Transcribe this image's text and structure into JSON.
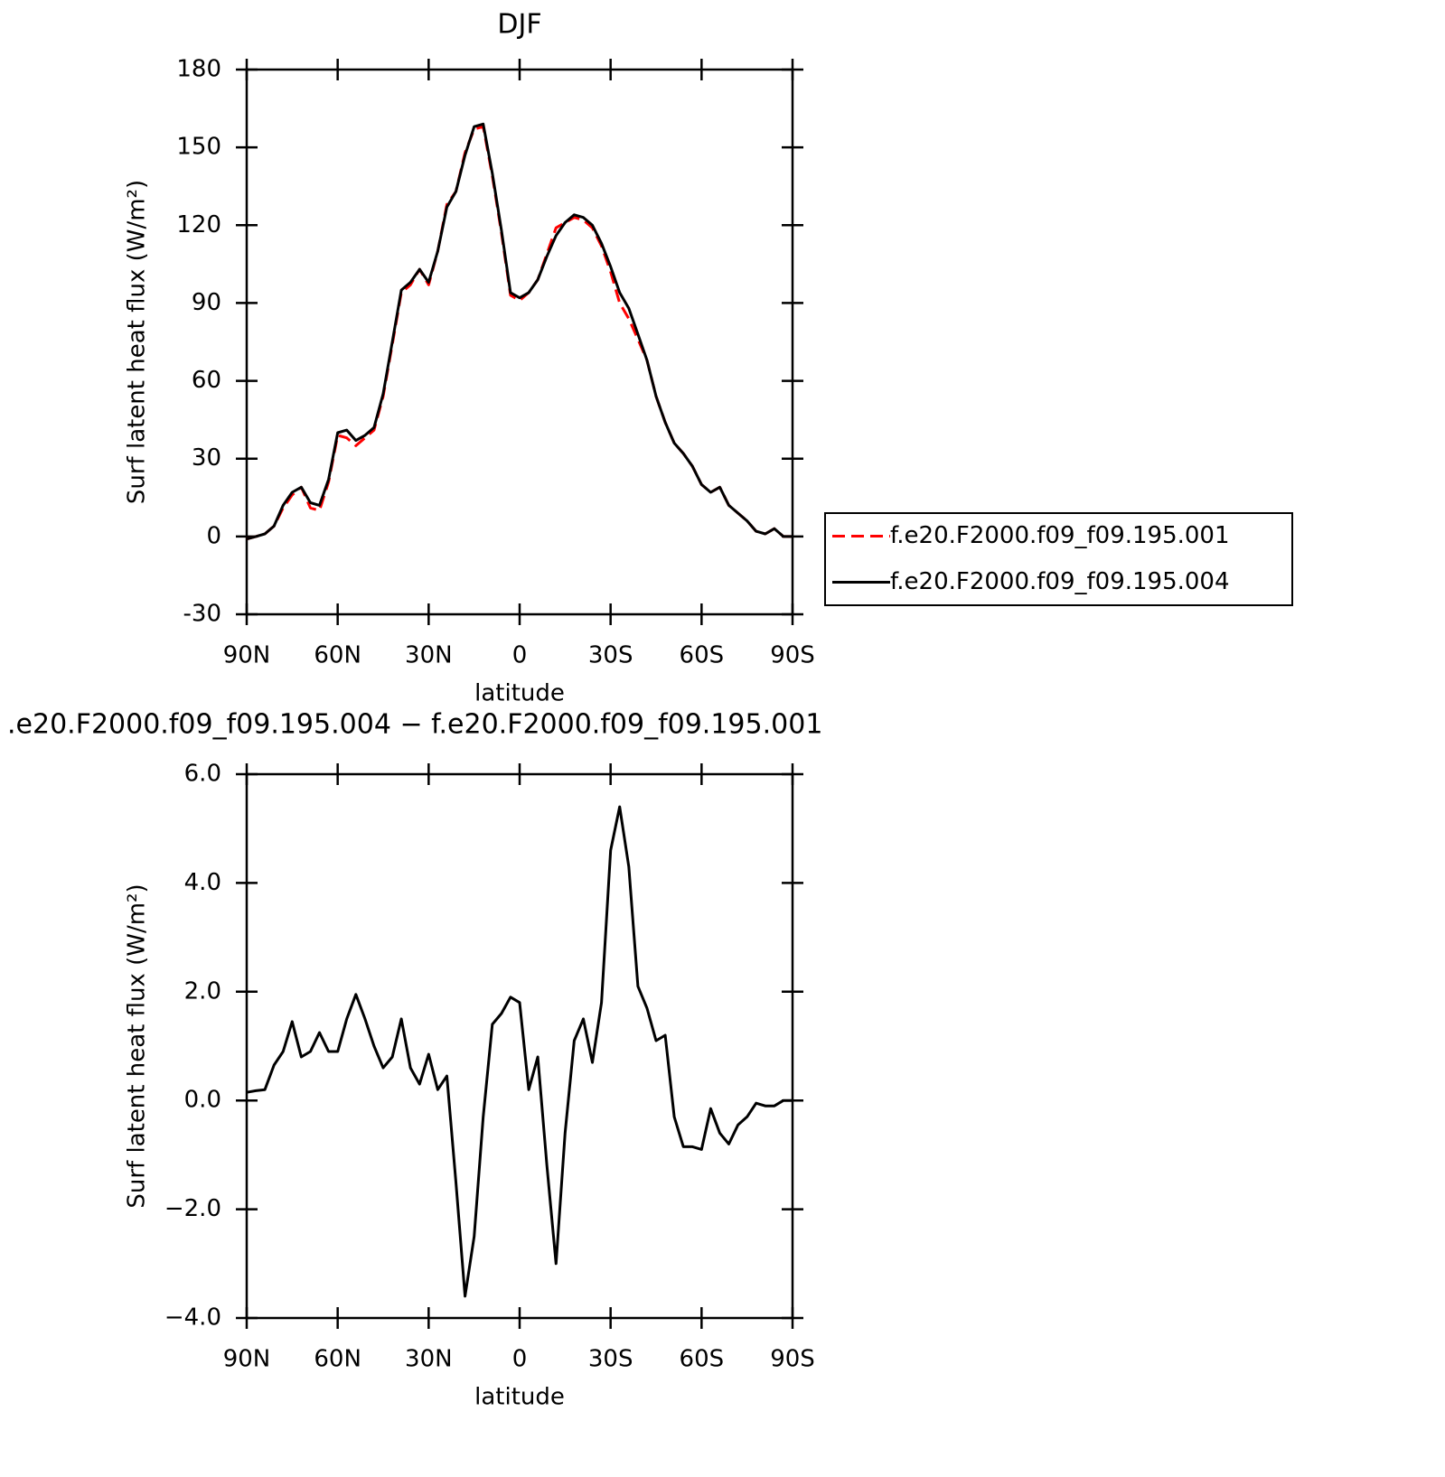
{
  "chart_data": [
    {
      "type": "line",
      "title": "DJF",
      "xlabel": "latitude",
      "ylabel": "Surf latent heat flux (W/m²)",
      "x": [
        90,
        87,
        84,
        81,
        78,
        75,
        72,
        69,
        66,
        63,
        60,
        57,
        54,
        51,
        48,
        45,
        42,
        39,
        36,
        33,
        30,
        27,
        24,
        21,
        18,
        15,
        12,
        9,
        6,
        3,
        0,
        -3,
        -6,
        -9,
        -12,
        -15,
        -18,
        -21,
        -24,
        -27,
        -30,
        -33,
        -36,
        -39,
        -42,
        -45,
        -48,
        -51,
        -54,
        -57,
        -60,
        -63,
        -66,
        -69,
        -72,
        -75,
        -78,
        -81,
        -84,
        -87,
        -90
      ],
      "series": [
        {
          "name": "f.e20.F2000.f09_f09.195.001",
          "color": "#ff0000",
          "dash": true,
          "values": [
            -1,
            0,
            1,
            4,
            11,
            16,
            19,
            11,
            10,
            21,
            39,
            38,
            35,
            38,
            41,
            54,
            74,
            94,
            97,
            103,
            97,
            110,
            128,
            133,
            148,
            157,
            158,
            139,
            117,
            93,
            91,
            94,
            99,
            109,
            119,
            121,
            123,
            122,
            119,
            112,
            102,
            90,
            84,
            76,
            68,
            54,
            44,
            36,
            32,
            27,
            20,
            17,
            19,
            12,
            9,
            6,
            2,
            1,
            3,
            0,
            0
          ]
        },
        {
          "name": "f.e20.F2000.f09_f09.195.004",
          "color": "#000000",
          "dash": false,
          "values": [
            -1,
            0,
            1,
            4,
            12,
            17,
            19,
            13,
            12,
            22,
            40,
            41,
            37,
            39,
            42,
            55,
            75,
            95,
            98,
            103,
            98,
            110,
            127,
            133,
            147,
            158,
            159,
            140,
            118,
            94,
            92,
            94,
            99,
            108,
            116,
            121,
            124,
            123,
            120,
            113,
            104,
            94,
            88,
            78,
            68,
            54,
            44,
            36,
            32,
            27,
            20,
            17,
            19,
            12,
            9,
            6,
            2,
            1,
            3,
            0,
            0
          ]
        }
      ],
      "xlim": [
        90,
        -90
      ],
      "xticks": [
        {
          "value": 90,
          "label": "90N"
        },
        {
          "value": 60,
          "label": "60N"
        },
        {
          "value": 30,
          "label": "30N"
        },
        0,
        {
          "value": -30,
          "label": "30S"
        },
        {
          "value": -60,
          "label": "60S"
        },
        {
          "value": -90,
          "label": "90S"
        }
      ],
      "ylim": [
        -30,
        180
      ],
      "yticks": [
        -30,
        0,
        30,
        60,
        90,
        120,
        150,
        180
      ],
      "legend": "right"
    },
    {
      "type": "line",
      "title": ".e20.F2000.f09_f09.195.004 − f.e20.F2000.f09_f09.195.001",
      "xlabel": "latitude",
      "ylabel": "Surf latent heat flux (W/m²)",
      "x": [
        90,
        87,
        84,
        81,
        78,
        75,
        72,
        69,
        66,
        63,
        60,
        57,
        54,
        51,
        48,
        45,
        42,
        39,
        36,
        33,
        30,
        27,
        24,
        21,
        18,
        15,
        12,
        9,
        6,
        3,
        0,
        -3,
        -6,
        -9,
        -12,
        -15,
        -18,
        -21,
        -24,
        -27,
        -30,
        -33,
        -36,
        -39,
        -42,
        -45,
        -48,
        -51,
        -54,
        -57,
        -60,
        -63,
        -66,
        -69,
        -72,
        -75,
        -78,
        -81,
        -84,
        -87,
        -90
      ],
      "series": [
        {
          "color": "#000000",
          "dash": false,
          "values": [
            0.15,
            0.18,
            0.2,
            0.65,
            0.9,
            1.45,
            0.8,
            0.9,
            1.25,
            0.9,
            0.9,
            1.5,
            1.95,
            1.5,
            1.0,
            0.6,
            0.8,
            1.5,
            0.6,
            0.3,
            0.85,
            0.2,
            0.45,
            -1.5,
            -3.6,
            -2.5,
            -0.3,
            1.4,
            1.6,
            1.9,
            1.8,
            0.2,
            0.8,
            -1.2,
            -3.0,
            -0.6,
            1.1,
            1.5,
            0.7,
            1.8,
            4.6,
            5.4,
            4.3,
            2.1,
            1.7,
            1.1,
            1.2,
            -0.3,
            -0.85,
            -0.85,
            -0.9,
            -0.15,
            -0.6,
            -0.8,
            -0.45,
            -0.3,
            -0.05,
            -0.1,
            -0.1,
            0.0,
            0.0
          ]
        }
      ],
      "xlim": [
        90,
        -90
      ],
      "xticks": [
        {
          "value": 90,
          "label": "90N"
        },
        {
          "value": 60,
          "label": "60N"
        },
        {
          "value": 30,
          "label": "30N"
        },
        0,
        {
          "value": -30,
          "label": "30S"
        },
        {
          "value": -60,
          "label": "60S"
        },
        {
          "value": -90,
          "label": "90S"
        }
      ],
      "ylim": [
        -4,
        6
      ],
      "yticks": [
        {
          "value": -4,
          "label": "−4.0"
        },
        {
          "value": -2,
          "label": "−2.0"
        },
        {
          "value": 0,
          "label": "0.0"
        },
        {
          "value": 2,
          "label": "2.0"
        },
        {
          "value": 4,
          "label": "4.0"
        },
        {
          "value": 6,
          "label": "6.0"
        }
      ]
    }
  ]
}
